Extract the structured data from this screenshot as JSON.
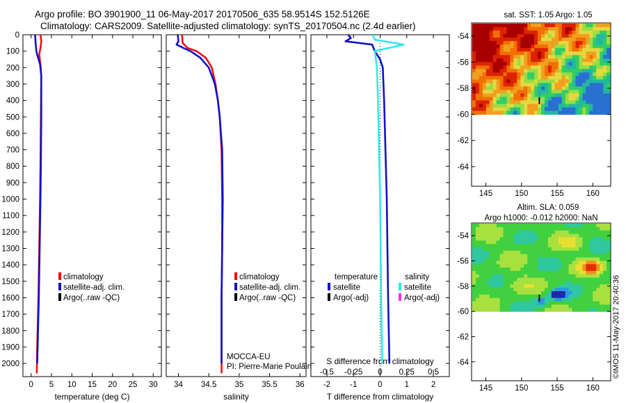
{
  "header": {
    "line1": "Argo profile: BO 3901900_11 06-May-2017 20170506_635 58.9514S 152.5126E",
    "line2": "Climatology: CARS2009. Satellite-adjusted climatology: synTS_20170504.nc (2.4d earlier)"
  },
  "credit": "©IMOS 11-May-2017 20:40:36",
  "colors": {
    "climatology": "#ee1111",
    "satellite": "#1111cc",
    "argo": "#000000",
    "satellite_s": "#33e8e8",
    "argo_s": "#ee33ee"
  },
  "chart_data": [
    {
      "type": "line",
      "xlabel": "temperature (deg C)",
      "xticks": [
        "0",
        "5",
        "10",
        "15",
        "20",
        "25",
        "30"
      ],
      "xlim": [
        -2,
        32
      ],
      "ylim": [
        2080,
        0
      ],
      "yticks": [
        "0",
        "100",
        "200",
        "300",
        "400",
        "500",
        "600",
        "700",
        "800",
        "900",
        "1000",
        "1100",
        "1200",
        "1300",
        "1400",
        "1500",
        "1600",
        "1700",
        "1800",
        "1900",
        "2000"
      ],
      "legend": [
        "climatology",
        "satellite-adj. clim.",
        "Argo(..raw -QC)"
      ],
      "series": [
        {
          "name": "climatology",
          "color": "#ee1111",
          "points": [
            [
              2.3,
              0
            ],
            [
              2.5,
              40
            ],
            [
              2.3,
              80
            ],
            [
              2.0,
              120
            ],
            [
              2.3,
              180
            ],
            [
              2.5,
              250
            ],
            [
              2.4,
              500
            ],
            [
              2.3,
              800
            ],
            [
              2.2,
              1000
            ],
            [
              2.0,
              1300
            ],
            [
              1.8,
              1600
            ],
            [
              1.5,
              1900
            ],
            [
              1.4,
              2060
            ]
          ]
        },
        {
          "name": "satellite-adj. clim.",
          "color": "#1111cc",
          "points": [
            [
              1.0,
              0
            ],
            [
              1.1,
              50
            ],
            [
              1.3,
              100
            ],
            [
              1.6,
              130
            ],
            [
              2.2,
              180
            ],
            [
              2.5,
              250
            ],
            [
              2.5,
              500
            ],
            [
              2.4,
              800
            ],
            [
              2.3,
              1000
            ],
            [
              2.1,
              1300
            ],
            [
              1.9,
              1600
            ],
            [
              1.6,
              1900
            ],
            [
              1.5,
              2000
            ]
          ]
        }
      ]
    },
    {
      "type": "line",
      "xlabel": "salinity",
      "xticks": [
        "34",
        "34.5",
        "35",
        "35.5",
        "36"
      ],
      "xlim": [
        33.8,
        36.1
      ],
      "ylim": [
        2080,
        0
      ],
      "legend": [
        "climatology",
        "satellite-adj. clim.",
        "Argo(..raw -QC)"
      ],
      "annotations": [
        "MOCCA-EU",
        "PI: Pierre-Marie Poulain"
      ],
      "series": [
        {
          "name": "climatology",
          "color": "#ee1111",
          "points": [
            [
              34.06,
              0
            ],
            [
              34.07,
              50
            ],
            [
              34.15,
              80
            ],
            [
              34.3,
              100
            ],
            [
              34.45,
              140
            ],
            [
              34.55,
              200
            ],
            [
              34.61,
              300
            ],
            [
              34.65,
              400
            ],
            [
              34.68,
              500
            ],
            [
              34.71,
              700
            ],
            [
              34.72,
              1000
            ],
            [
              34.72,
              1300
            ],
            [
              34.71,
              1600
            ],
            [
              34.71,
              2060
            ]
          ]
        },
        {
          "name": "satellite-adj. clim.",
          "color": "#1111cc",
          "points": [
            [
              33.99,
              0
            ],
            [
              34.0,
              40
            ],
            [
              33.97,
              60
            ],
            [
              34.08,
              80
            ],
            [
              34.2,
              100
            ],
            [
              34.36,
              140
            ],
            [
              34.5,
              200
            ],
            [
              34.6,
              300
            ],
            [
              34.65,
              400
            ],
            [
              34.68,
              500
            ],
            [
              34.72,
              700
            ],
            [
              34.73,
              1000
            ],
            [
              34.72,
              1300
            ],
            [
              34.71,
              1600
            ],
            [
              34.71,
              2000
            ]
          ]
        }
      ]
    },
    {
      "type": "line",
      "xlabel": "T difference from climatology",
      "xticks": [
        "-2",
        "-1",
        "0",
        "1",
        "2"
      ],
      "xlim": [
        -2.6,
        2.6
      ],
      "s_label": "S difference from climatology",
      "s_ticks": [
        "-0.5",
        "-0.25",
        "0",
        "0.25",
        "0.5"
      ],
      "legend_titles": [
        "temperature",
        "salinity"
      ],
      "legend": [
        "satellite",
        "Argo(-adj)",
        "satellite",
        "Argo(-adj)"
      ],
      "series": [
        {
          "name": "satellite",
          "axis": "T",
          "color": "#1111cc",
          "points": [
            [
              -1.2,
              0
            ],
            [
              -1.1,
              20
            ],
            [
              -1.3,
              40
            ],
            [
              -0.3,
              60
            ],
            [
              -0.2,
              100
            ],
            [
              0.0,
              150
            ],
            [
              0.1,
              200
            ],
            [
              0.15,
              400
            ],
            [
              0.25,
              1000
            ],
            [
              0.3,
              1600
            ],
            [
              0.35,
              2000
            ]
          ]
        },
        {
          "name": "satellite",
          "axis": "S",
          "color": "#33e8e8",
          "points": [
            [
              -0.07,
              0
            ],
            [
              -0.05,
              30
            ],
            [
              0.22,
              60
            ],
            [
              -0.05,
              100
            ],
            [
              -0.03,
              200
            ],
            [
              -0.02,
              400
            ],
            [
              0.0,
              1000
            ],
            [
              0.01,
              1600
            ],
            [
              0.02,
              2000
            ]
          ]
        }
      ]
    },
    {
      "type": "heatmap",
      "title": "sat. SST: 1.05 Argo: 1.05",
      "xticks": [
        "145",
        "150",
        "155",
        "160"
      ],
      "yticks": [
        "-54",
        "-56",
        "-58",
        "-60",
        "-62",
        "-64"
      ],
      "xlim": [
        143,
        162.5
      ],
      "ylim": [
        -65.5,
        -53
      ]
    },
    {
      "type": "heatmap",
      "title": "Altim. SLA: 0.059",
      "subtitle": "Argo h1000: -0.012 h2000: NaN",
      "xticks": [
        "145",
        "150",
        "155",
        "160"
      ],
      "yticks": [
        "-54",
        "-56",
        "-58",
        "-60",
        "-62",
        "-64"
      ],
      "xlim": [
        143,
        162.5
      ],
      "ylim": [
        -65.5,
        -53
      ]
    }
  ]
}
